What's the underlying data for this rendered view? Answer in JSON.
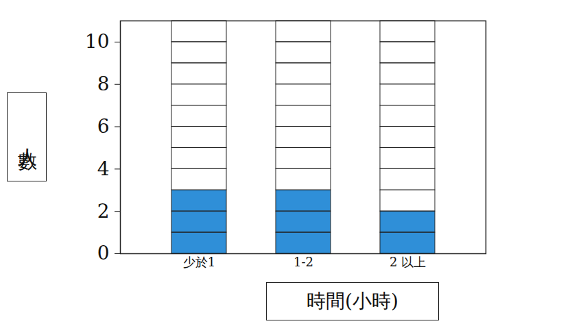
{
  "chart_data": {
    "type": "bar",
    "categories": [
      "少於1",
      "1-2",
      "2 以上"
    ],
    "values": [
      3,
      3,
      2
    ],
    "color": "#2f8fd8",
    "xlabel": "時間(小時)",
    "ylabel": "人數",
    "ylim": [
      0,
      11
    ],
    "yticks": [
      0,
      2,
      4,
      6,
      8,
      10
    ]
  }
}
